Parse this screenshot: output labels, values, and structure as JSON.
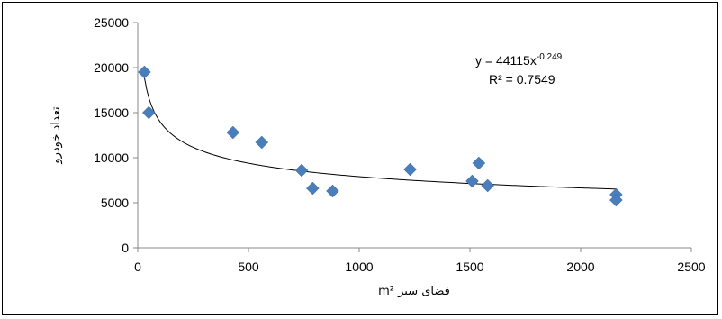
{
  "chart_data": {
    "type": "scatter",
    "xlabel": "m² فضای سبز",
    "ylabel": "تعداد خودرو",
    "xlim": [
      0,
      2500
    ],
    "ylim": [
      0,
      25000
    ],
    "x_ticks": [
      "0",
      "500",
      "1000",
      "1500",
      "2000",
      "2500"
    ],
    "y_ticks": [
      "0",
      "5000",
      "10000",
      "15000",
      "20000",
      "25000"
    ],
    "points": [
      {
        "x": 30,
        "y": 19500
      },
      {
        "x": 50,
        "y": 15000
      },
      {
        "x": 430,
        "y": 12800
      },
      {
        "x": 560,
        "y": 11700
      },
      {
        "x": 740,
        "y": 8600
      },
      {
        "x": 790,
        "y": 6600
      },
      {
        "x": 880,
        "y": 6300
      },
      {
        "x": 1230,
        "y": 8700
      },
      {
        "x": 1510,
        "y": 7400
      },
      {
        "x": 1540,
        "y": 9400
      },
      {
        "x": 1580,
        "y": 6900
      },
      {
        "x": 2160,
        "y": 5900
      },
      {
        "x": 2160,
        "y": 5300
      }
    ],
    "trendline": {
      "type": "power",
      "a": 44115,
      "b": -0.249,
      "equation_base": "y = 44115x",
      "equation_exponent": "-0.249",
      "r_squared_label": "R² = 0.7549"
    },
    "marker_color": "#4a7ebb",
    "grid": false,
    "legend": "none"
  }
}
